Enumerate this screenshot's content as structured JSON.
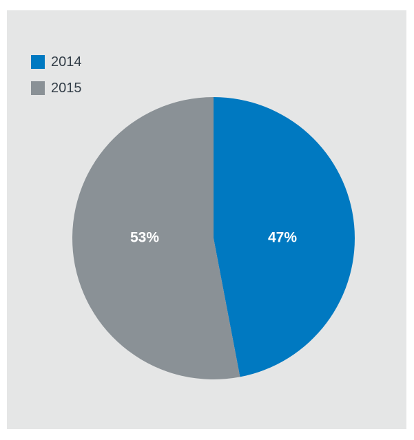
{
  "chart_data": {
    "type": "pie",
    "title": "",
    "legend_position": "top-left",
    "slices": [
      {
        "name": "2014",
        "value": 47,
        "label": "47%",
        "color": "#0079c1"
      },
      {
        "name": "2015",
        "value": 53,
        "label": "53%",
        "color": "#8a9196"
      }
    ]
  },
  "colors": {
    "panel_background": "#e5e6e6",
    "page_background": "#ffffff",
    "label_text": "#ffffff",
    "legend_text": "#333e48"
  }
}
